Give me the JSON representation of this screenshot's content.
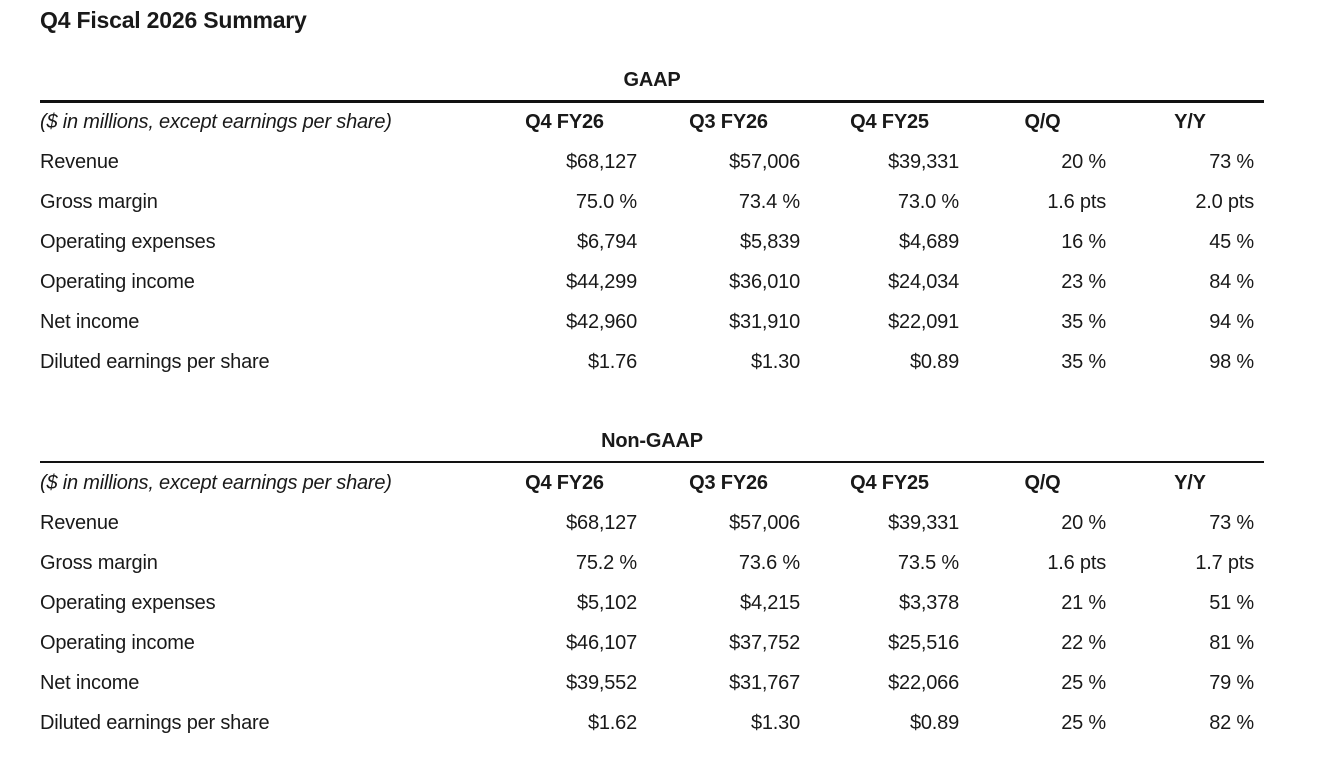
{
  "page": {
    "title": "Q4 Fiscal 2026 Summary"
  },
  "colors": {
    "background": "#ffffff",
    "text": "#191919",
    "rule": "#121212"
  },
  "tables": [
    {
      "heading": "GAAP",
      "note": "($ in millions, except earnings per share)",
      "columns": [
        "Q4 FY26",
        "Q3 FY26",
        "Q4 FY25",
        "Q/Q",
        "Y/Y"
      ],
      "rows": [
        {
          "label": "Revenue",
          "values": [
            "$68,127",
            "$57,006",
            "$39,331",
            "20 %",
            "73 %"
          ]
        },
        {
          "label": "Gross margin",
          "values": [
            "75.0 %",
            "73.4 %",
            "73.0 %",
            "1.6 pts",
            "2.0 pts"
          ]
        },
        {
          "label": "Operating expenses",
          "values": [
            "$6,794",
            "$5,839",
            "$4,689",
            "16 %",
            "45 %"
          ]
        },
        {
          "label": "Operating income",
          "values": [
            "$44,299",
            "$36,010",
            "$24,034",
            "23 %",
            "84 %"
          ]
        },
        {
          "label": "Net income",
          "values": [
            "$42,960",
            "$31,910",
            "$22,091",
            "35 %",
            "94 %"
          ]
        },
        {
          "label": "Diluted earnings per share",
          "values": [
            "$1.76",
            "$1.30",
            "$0.89",
            "35 %",
            "98 %"
          ]
        }
      ]
    },
    {
      "heading": "Non-GAAP",
      "note": "($ in millions, except earnings per share)",
      "columns": [
        "Q4 FY26",
        "Q3 FY26",
        "Q4 FY25",
        "Q/Q",
        "Y/Y"
      ],
      "rows": [
        {
          "label": "Revenue",
          "values": [
            "$68,127",
            "$57,006",
            "$39,331",
            "20 %",
            "73 %"
          ]
        },
        {
          "label": "Gross margin",
          "values": [
            "75.2 %",
            "73.6 %",
            "73.5 %",
            "1.6 pts",
            "1.7 pts"
          ]
        },
        {
          "label": "Operating expenses",
          "values": [
            "$5,102",
            "$4,215",
            "$3,378",
            "21 %",
            "51 %"
          ]
        },
        {
          "label": "Operating income",
          "values": [
            "$46,107",
            "$37,752",
            "$25,516",
            "22 %",
            "81 %"
          ]
        },
        {
          "label": "Net income",
          "values": [
            "$39,552",
            "$31,767",
            "$22,066",
            "25 %",
            "79 %"
          ]
        },
        {
          "label": "Diluted earnings per share",
          "values": [
            "$1.62",
            "$1.30",
            "$0.89",
            "25 %",
            "82 %"
          ]
        }
      ]
    }
  ]
}
